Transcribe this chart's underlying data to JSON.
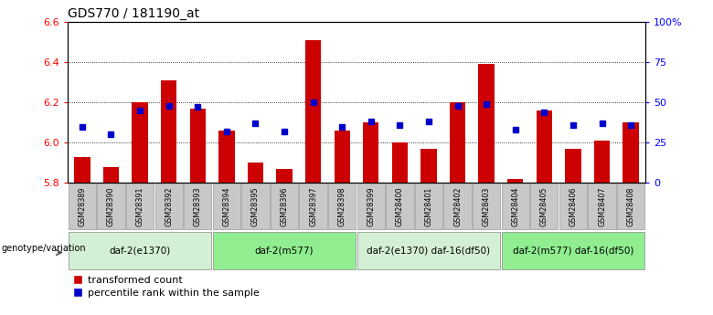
{
  "title": "GDS770 / 181190_at",
  "samples": [
    "GSM28389",
    "GSM28390",
    "GSM28391",
    "GSM28392",
    "GSM28393",
    "GSM28394",
    "GSM28395",
    "GSM28396",
    "GSM28397",
    "GSM28398",
    "GSM28399",
    "GSM28400",
    "GSM28401",
    "GSM28402",
    "GSM28403",
    "GSM28404",
    "GSM28405",
    "GSM28406",
    "GSM28407",
    "GSM28408"
  ],
  "bar_values": [
    5.93,
    5.88,
    6.2,
    6.31,
    6.17,
    6.06,
    5.9,
    5.87,
    6.51,
    6.06,
    6.1,
    6.0,
    5.97,
    6.2,
    6.39,
    5.82,
    6.16,
    5.97,
    6.01,
    6.1
  ],
  "percentile_values": [
    35,
    30,
    45,
    48,
    47,
    32,
    37,
    32,
    50,
    35,
    38,
    36,
    38,
    48,
    49,
    33,
    44,
    36,
    37,
    36
  ],
  "ymin": 5.8,
  "ymax": 6.6,
  "yticks": [
    5.8,
    6.0,
    6.2,
    6.4,
    6.6
  ],
  "pct_yticks": [
    0,
    25,
    50,
    75,
    100
  ],
  "pct_tick_labels": [
    "0",
    "25",
    "50",
    "75",
    "100%"
  ],
  "bar_color": "#cc0000",
  "dot_color": "#0000cc",
  "bar_width": 0.55,
  "groups": [
    {
      "label": "daf-2(e1370)",
      "start": 0,
      "end": 5,
      "color": "#d4f0d4"
    },
    {
      "label": "daf-2(m577)",
      "start": 5,
      "end": 10,
      "color": "#90ee90"
    },
    {
      "label": "daf-2(e1370) daf-16(df50)",
      "start": 10,
      "end": 15,
      "color": "#d4f0d4"
    },
    {
      "label": "daf-2(m577) daf-16(df50)",
      "start": 15,
      "end": 20,
      "color": "#90ee90"
    }
  ],
  "legend_labels": [
    "transformed count",
    "percentile rank within the sample"
  ],
  "genotype_label": "genotype/variation",
  "sample_box_color": "#c8c8c8"
}
